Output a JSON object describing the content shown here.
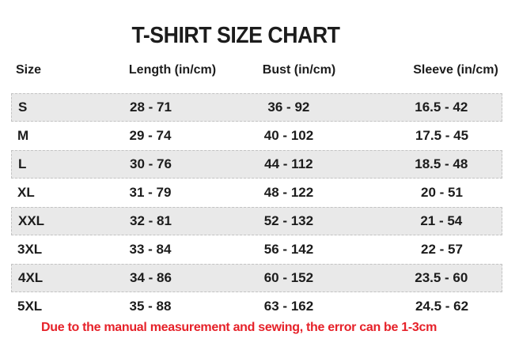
{
  "chart_data": {
    "type": "table",
    "title": "T-SHIRT SIZE CHART",
    "columns": [
      "Size",
      "Length (in/cm)",
      "Bust (in/cm)",
      "Sleeve (in/cm)"
    ],
    "rows": [
      {
        "size": "S",
        "length": "28 - 71",
        "bust": "36 - 92",
        "sleeve": "16.5 - 42"
      },
      {
        "size": "M",
        "length": "29 - 74",
        "bust": "40 - 102",
        "sleeve": "17.5 - 45"
      },
      {
        "size": "L",
        "length": "30 - 76",
        "bust": "44 - 112",
        "sleeve": "18.5 - 48"
      },
      {
        "size": "XL",
        "length": "31 - 79",
        "bust": "48 - 122",
        "sleeve": "20 - 51"
      },
      {
        "size": "XXL",
        "length": "32 - 81",
        "bust": "52 - 132",
        "sleeve": "21 - 54"
      },
      {
        "size": "3XL",
        "length": "33 - 84",
        "bust": "56 - 142",
        "sleeve": "22 - 57"
      },
      {
        "size": "4XL",
        "length": "34 - 86",
        "bust": "60 - 152",
        "sleeve": "23.5 - 60"
      },
      {
        "size": "5XL",
        "length": "35 - 88",
        "bust": "63 - 162",
        "sleeve": "24.5 - 62"
      }
    ],
    "shaded_row_indices": [
      0,
      2,
      4,
      6
    ],
    "footnote": "Due to the manual measurement and sewing, the error can be 1-3cm",
    "layout": {
      "grid": "off",
      "legend": "none"
    }
  },
  "colors": {
    "footnote_red": "#e62129",
    "shaded_row_bg": "#e9e9e9",
    "row_dashed_border": "#c3c3c3",
    "text": "#1c1c1c",
    "background": "#ffffff"
  }
}
